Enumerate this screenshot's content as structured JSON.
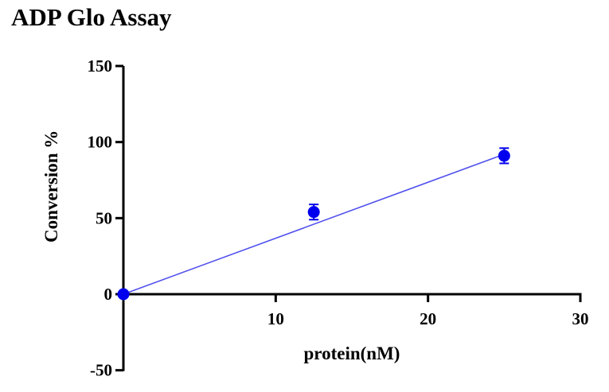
{
  "chart_data": {
    "type": "scatter",
    "title": "ADP Glo Assay",
    "xlabel": "protein(nM)",
    "ylabel": "Conversion %",
    "xlim": [
      0,
      30
    ],
    "ylim": [
      -50,
      150
    ],
    "x_ticks": [
      "10",
      "20",
      "30"
    ],
    "y_ticks": [
      "150",
      "100",
      "50",
      "0",
      "-50"
    ],
    "points": [
      {
        "x": 0,
        "y": 0,
        "err": 0
      },
      {
        "x": 12.5,
        "y": 54,
        "err": 5
      },
      {
        "x": 25,
        "y": 91,
        "err": 5
      }
    ],
    "fit_line": {
      "x": [
        0,
        25
      ],
      "y": [
        0,
        92
      ]
    },
    "colors": {
      "marker": "#0000ee",
      "fit_line": "#5050ee",
      "axis": "#000000"
    },
    "grid": false,
    "legend": "none"
  }
}
